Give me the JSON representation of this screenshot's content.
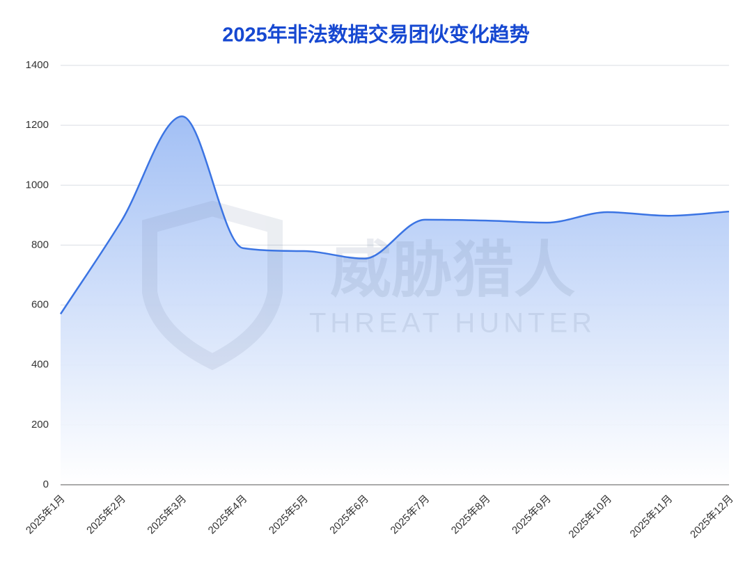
{
  "chart_data": {
    "type": "area",
    "title": "2025年非法数据交易团伙变化趋势",
    "watermark": [
      "威胁猎人",
      "THREAT HUNTER"
    ],
    "categories": [
      "2025年1月",
      "2025年2月",
      "2025年3月",
      "2025年4月",
      "2025年5月",
      "2025年6月",
      "2025年7月",
      "2025年8月",
      "2025年9月",
      "2025年10月",
      "2025年11月",
      "2025年12月"
    ],
    "values": [
      570,
      880,
      1230,
      790,
      780,
      755,
      885,
      882,
      875,
      910,
      898,
      912
    ],
    "color": "#3b74e3",
    "ylim": [
      0,
      1400
    ],
    "yticks": [
      0,
      200,
      400,
      600,
      800,
      1000,
      1200,
      1400
    ],
    "grid": true
  }
}
